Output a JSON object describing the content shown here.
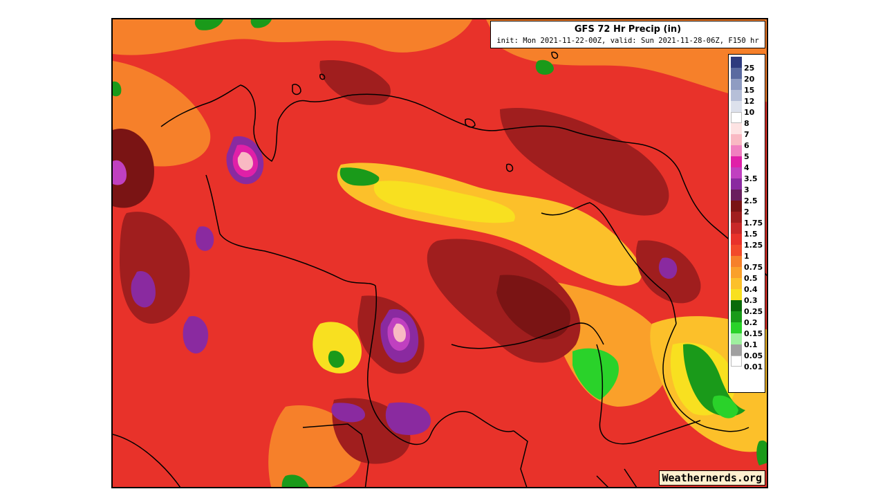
{
  "title": {
    "main": "GFS 72 Hr Precip (in)",
    "sub": "init: Mon 2021-11-22-00Z, valid: Sun 2021-11-28-06Z, F150 hr"
  },
  "watermark": "Weathernerds.org",
  "legend": [
    {
      "label": "25",
      "color": "#2e3b7e"
    },
    {
      "label": "20",
      "color": "#5a6aa0"
    },
    {
      "label": "15",
      "color": "#8f9cc2"
    },
    {
      "label": "12",
      "color": "#b6bfd8"
    },
    {
      "label": "10",
      "color": "#dde1ec"
    },
    {
      "label": "8",
      "color": "#ffffff"
    },
    {
      "label": "7",
      "color": "#fde3e3"
    },
    {
      "label": "6",
      "color": "#f9b9c3"
    },
    {
      "label": "5",
      "color": "#f080c0"
    },
    {
      "label": "4",
      "color": "#e020a8"
    },
    {
      "label": "3.5",
      "color": "#c040c0"
    },
    {
      "label": "3",
      "color": "#8a2aa0"
    },
    {
      "label": "2.5",
      "color": "#6a1f5e"
    },
    {
      "label": "2",
      "color": "#7a1414"
    },
    {
      "label": "1.75",
      "color": "#a01e1e"
    },
    {
      "label": "1.5",
      "color": "#c82828"
    },
    {
      "label": "1.25",
      "color": "#e8322a"
    },
    {
      "label": "1",
      "color": "#f24a2a"
    },
    {
      "label": "0.75",
      "color": "#f6802a"
    },
    {
      "label": "0.5",
      "color": "#faa02a"
    },
    {
      "label": "0.4",
      "color": "#fcc02a"
    },
    {
      "label": "0.3",
      "color": "#f8e020"
    },
    {
      "label": "0.25",
      "color": "#0a6a0a"
    },
    {
      "label": "0.2",
      "color": "#1a9a1a"
    },
    {
      "label": "0.15",
      "color": "#2ad22a"
    },
    {
      "label": "0.1",
      "color": "#9ff09f"
    },
    {
      "label": "0.05",
      "color": "#a0a0a0"
    },
    {
      "label": "0.01",
      "color": "#ffffff"
    }
  ]
}
